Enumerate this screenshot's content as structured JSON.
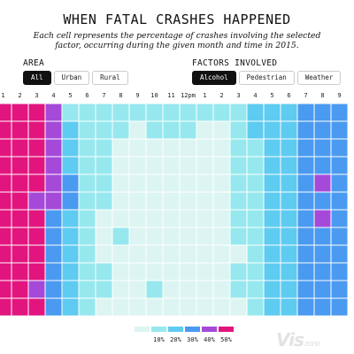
{
  "header": {
    "title": "WHEN FATAL CRASHES HAPPENED",
    "subtitle": "Each cell represents the percentage of crashes involving the selected factor, occurring during the given month and time in 2015."
  },
  "area": {
    "label": "AREA",
    "options": [
      "All",
      "Urban",
      "Rural"
    ],
    "selected": "All"
  },
  "factors": {
    "label": "FACTORS INVOLVED",
    "options": [
      "Alcohol",
      "Pedestrian",
      "Weather"
    ],
    "selected": "Alcohol"
  },
  "watermark": {
    "text": "Vis",
    "suffix": "zone"
  },
  "colors": {
    "c0": "#dcf5f2",
    "c10": "#96e8ee",
    "c20": "#5ecbf1",
    "c30": "#4a9af1",
    "c40": "#a54ad8",
    "c50": "#e2157f",
    "grid": "#ffffff"
  },
  "chart_data": {
    "type": "heatmap",
    "columns": [
      "1",
      "2",
      "3",
      "4",
      "5",
      "6",
      "7",
      "8",
      "9",
      "10",
      "11",
      "12pm",
      "1",
      "2",
      "3",
      "4",
      "5",
      "6",
      "7",
      "8",
      "9"
    ],
    "rows": 12,
    "legend": [
      "10%",
      "20%",
      "30%",
      "40%",
      "50%"
    ],
    "values": [
      [
        5,
        5,
        5,
        4,
        1,
        1,
        1,
        1,
        1,
        1,
        1,
        1,
        1,
        1,
        1,
        2,
        2,
        2,
        3,
        3,
        3
      ],
      [
        5,
        5,
        5,
        4,
        2,
        1,
        1,
        1,
        0,
        1,
        1,
        1,
        0,
        0,
        1,
        2,
        2,
        2,
        3,
        3,
        3
      ],
      [
        5,
        5,
        5,
        4,
        2,
        1,
        1,
        0,
        0,
        0,
        0,
        0,
        0,
        0,
        1,
        1,
        2,
        2,
        3,
        3,
        3
      ],
      [
        5,
        5,
        5,
        4,
        2,
        1,
        1,
        0,
        0,
        0,
        0,
        0,
        0,
        0,
        1,
        1,
        2,
        2,
        3,
        3,
        3
      ],
      [
        5,
        5,
        5,
        4,
        3,
        1,
        1,
        0,
        0,
        0,
        0,
        0,
        0,
        0,
        1,
        1,
        2,
        2,
        3,
        4,
        3
      ],
      [
        5,
        5,
        4,
        4,
        3,
        1,
        1,
        0,
        0,
        0,
        0,
        0,
        0,
        0,
        1,
        1,
        2,
        2,
        3,
        3,
        3
      ],
      [
        5,
        5,
        5,
        3,
        2,
        1,
        0,
        0,
        0,
        0,
        0,
        0,
        0,
        0,
        1,
        1,
        2,
        2,
        3,
        4,
        3
      ],
      [
        5,
        5,
        5,
        3,
        2,
        1,
        0,
        1,
        0,
        0,
        0,
        0,
        0,
        0,
        1,
        1,
        2,
        2,
        3,
        3,
        3
      ],
      [
        5,
        5,
        5,
        3,
        2,
        1,
        0,
        0,
        0,
        0,
        0,
        0,
        0,
        0,
        0,
        1,
        2,
        2,
        3,
        3,
        3
      ],
      [
        5,
        5,
        5,
        3,
        2,
        1,
        1,
        0,
        0,
        0,
        0,
        0,
        0,
        0,
        1,
        1,
        2,
        2,
        3,
        3,
        3
      ],
      [
        5,
        5,
        4,
        3,
        2,
        1,
        1,
        0,
        0,
        1,
        0,
        0,
        0,
        0,
        1,
        1,
        2,
        2,
        3,
        3,
        3
      ],
      [
        5,
        5,
        5,
        3,
        2,
        1,
        0,
        0,
        0,
        0,
        0,
        0,
        0,
        0,
        0,
        1,
        2,
        2,
        3,
        3,
        3
      ]
    ]
  }
}
